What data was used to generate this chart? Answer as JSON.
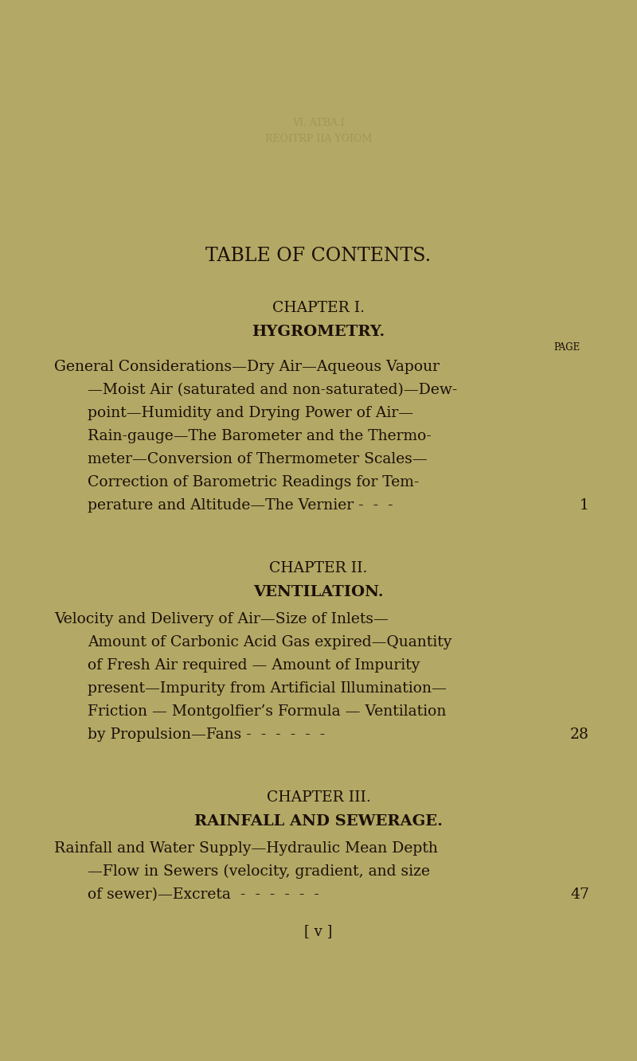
{
  "background_color": "#b3a865",
  "text_color": "#1a1008",
  "page_title": "TABLE OF CONTENTS.",
  "chapter1_heading": "CHAPTER I.",
  "chapter1_subheading": "HYGROMETRY.",
  "chapter1_page_label": "PAGE",
  "chapter1_body_lines": [
    "General Considerations—Dry Air—Aqueous Vapour",
    "—Moist Air (saturated and non-saturated)—Dew-",
    "point—Humidity and Drying Power of Air—",
    "Rain-gauge—The Barometer and the Thermo-",
    "meter—Conversion of Thermometer Scales—",
    "Correction of Barometric Readings for Tem-",
    "perature and Altitude—The Vernier -  -  - "
  ],
  "chapter1_page_number": "1",
  "chapter2_heading": "CHAPTER II.",
  "chapter2_subheading": "VENTILATION.",
  "chapter2_body_lines": [
    "Velocity and Delivery of Air—Size of Inlets—",
    "Amount of Carbonic Acid Gas expired—Quantity",
    "of Fresh Air required — Amount of Impurity",
    "present—Impurity from Artificial Illumination—",
    "Friction — Montgolfier’s Formula — Ventilation",
    "by Propulsion—Fans -  -  -  -  -  - "
  ],
  "chapter2_page_number": "28",
  "chapter3_heading": "CHAPTER III.",
  "chapter3_subheading": "RAINFALL AND SEWERAGE.",
  "chapter3_body_lines": [
    "Rainfall and Water Supply—Hydraulic Mean Depth",
    "—Flow in Sewers (velocity, gradient, and size",
    "of sewer)—Excreta  -  -  -  -  -  - "
  ],
  "chapter3_page_number": "47",
  "footer": "[ v ]",
  "faded_text_line1": "VI. ATBA.I",
  "faded_text_line2": "REOITRP IIA YOIOM",
  "fig_width": 8.0,
  "fig_height": 13.33,
  "dpi": 100
}
